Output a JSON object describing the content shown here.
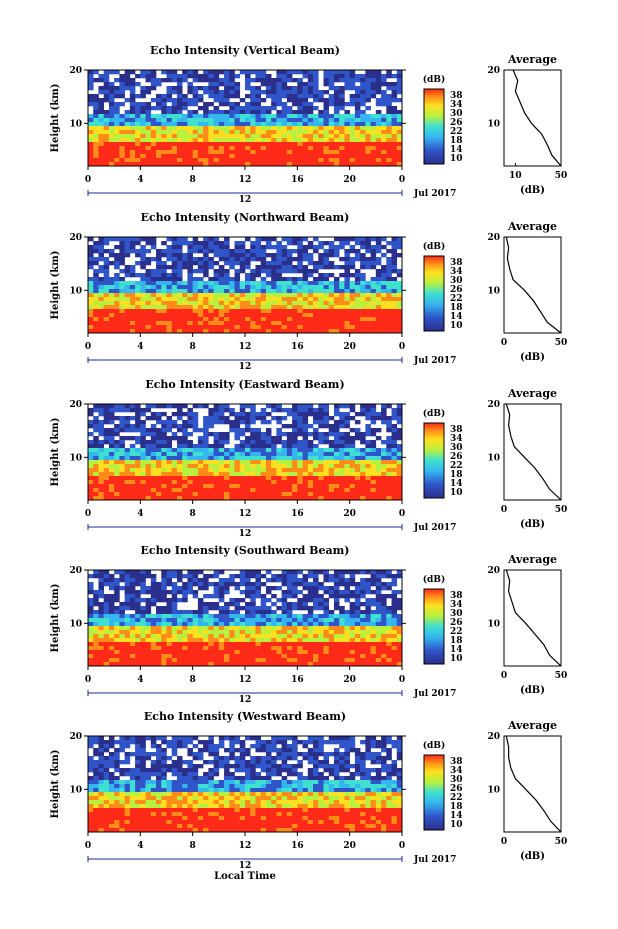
{
  "common": {
    "ylabel": "Height (km)",
    "xlabel": "Local Time",
    "date_label": "Jul 2017",
    "date_tick": "12",
    "cbar_unit": "(dB)",
    "avg_title": "Average",
    "avg_xlabel": "(dB)",
    "colorbar_ticks": [
      "38",
      "34",
      "30",
      "26",
      "22",
      "18",
      "14",
      "10"
    ],
    "colors": {
      "low": "#2b3a8f",
      "mid": "#3fd6e6",
      "high": "#ff3020",
      "bg": "#ffffff"
    }
  },
  "chart_data": [
    {
      "type": "heatmap",
      "title": "Echo Intensity (Vertical Beam)",
      "xlabel": "",
      "ylabel": "Height (km)",
      "x_ticks": [
        "0",
        "4",
        "8",
        "12",
        "16",
        "20",
        "0"
      ],
      "y_ticks": [
        "20",
        "10"
      ],
      "xlim": [
        0,
        24
      ],
      "ylim": [
        2,
        20
      ],
      "colorbar": {
        "label": "(dB)",
        "range": [
          10,
          38
        ]
      },
      "average_profile": {
        "title": "Average",
        "xlabel": "(dB)",
        "x_ticks": [
          "10",
          "50"
        ],
        "xlim": [
          0,
          50
        ],
        "height_km": [
          20,
          18,
          16,
          14,
          12,
          10,
          8,
          6,
          4,
          2
        ],
        "db": [
          8,
          12,
          10,
          14,
          18,
          24,
          33,
          38,
          42,
          50
        ]
      }
    },
    {
      "type": "heatmap",
      "title": "Echo Intensity (Northward Beam)",
      "xlabel": "",
      "ylabel": "Height (km)",
      "x_ticks": [
        "0",
        "4",
        "8",
        "12",
        "16",
        "20",
        "0"
      ],
      "y_ticks": [
        "20",
        "10"
      ],
      "xlim": [
        0,
        24
      ],
      "ylim": [
        2,
        20
      ],
      "colorbar": {
        "label": "(dB)",
        "range": [
          10,
          38
        ]
      },
      "average_profile": {
        "title": "Average",
        "xlabel": "(dB)",
        "x_ticks": [
          "0",
          "50"
        ],
        "xlim": [
          0,
          50
        ],
        "height_km": [
          20,
          18,
          16,
          14,
          12,
          10,
          8,
          6,
          4,
          2
        ],
        "db": [
          2,
          4,
          3,
          5,
          8,
          18,
          26,
          32,
          38,
          50
        ]
      }
    },
    {
      "type": "heatmap",
      "title": "Echo Intensity (Eastward Beam)",
      "xlabel": "",
      "ylabel": "Height (km)",
      "x_ticks": [
        "0",
        "4",
        "8",
        "12",
        "16",
        "20",
        "0"
      ],
      "y_ticks": [
        "20",
        "10"
      ],
      "xlim": [
        0,
        24
      ],
      "ylim": [
        2,
        20
      ],
      "colorbar": {
        "label": "(dB)",
        "range": [
          10,
          38
        ]
      },
      "average_profile": {
        "title": "Average",
        "xlabel": "(dB)",
        "x_ticks": [
          "0",
          "50"
        ],
        "xlim": [
          0,
          50
        ],
        "height_km": [
          20,
          18,
          16,
          14,
          12,
          10,
          8,
          6,
          4,
          2
        ],
        "db": [
          2,
          5,
          4,
          6,
          9,
          18,
          27,
          34,
          40,
          50
        ]
      }
    },
    {
      "type": "heatmap",
      "title": "Echo Intensity (Southward Beam)",
      "xlabel": "",
      "ylabel": "Height (km)",
      "x_ticks": [
        "0",
        "4",
        "8",
        "12",
        "16",
        "20",
        "0"
      ],
      "y_ticks": [
        "20",
        "10"
      ],
      "xlim": [
        0,
        24
      ],
      "ylim": [
        2,
        20
      ],
      "colorbar": {
        "label": "(dB)",
        "range": [
          10,
          38
        ]
      },
      "average_profile": {
        "title": "Average",
        "xlabel": "(dB)",
        "x_ticks": [
          "0",
          "50"
        ],
        "xlim": [
          0,
          50
        ],
        "height_km": [
          20,
          18,
          16,
          14,
          12,
          10,
          8,
          6,
          4,
          2
        ],
        "db": [
          2,
          5,
          4,
          7,
          10,
          19,
          27,
          35,
          40,
          50
        ]
      }
    },
    {
      "type": "heatmap",
      "title": "Echo Intensity (Westward Beam)",
      "xlabel": "Local Time",
      "ylabel": "Height (km)",
      "x_ticks": [
        "0",
        "4",
        "8",
        "12",
        "16",
        "20",
        "0"
      ],
      "y_ticks": [
        "20",
        "10"
      ],
      "xlim": [
        0,
        24
      ],
      "ylim": [
        2,
        20
      ],
      "colorbar": {
        "label": "(dB)",
        "range": [
          10,
          38
        ]
      },
      "average_profile": {
        "title": "Average",
        "xlabel": "(dB)",
        "x_ticks": [
          "0",
          "50"
        ],
        "xlim": [
          0,
          50
        ],
        "height_km": [
          20,
          18,
          16,
          14,
          12,
          10,
          8,
          6,
          4,
          2
        ],
        "db": [
          2,
          4,
          4,
          6,
          10,
          19,
          28,
          35,
          41,
          50
        ]
      }
    }
  ]
}
